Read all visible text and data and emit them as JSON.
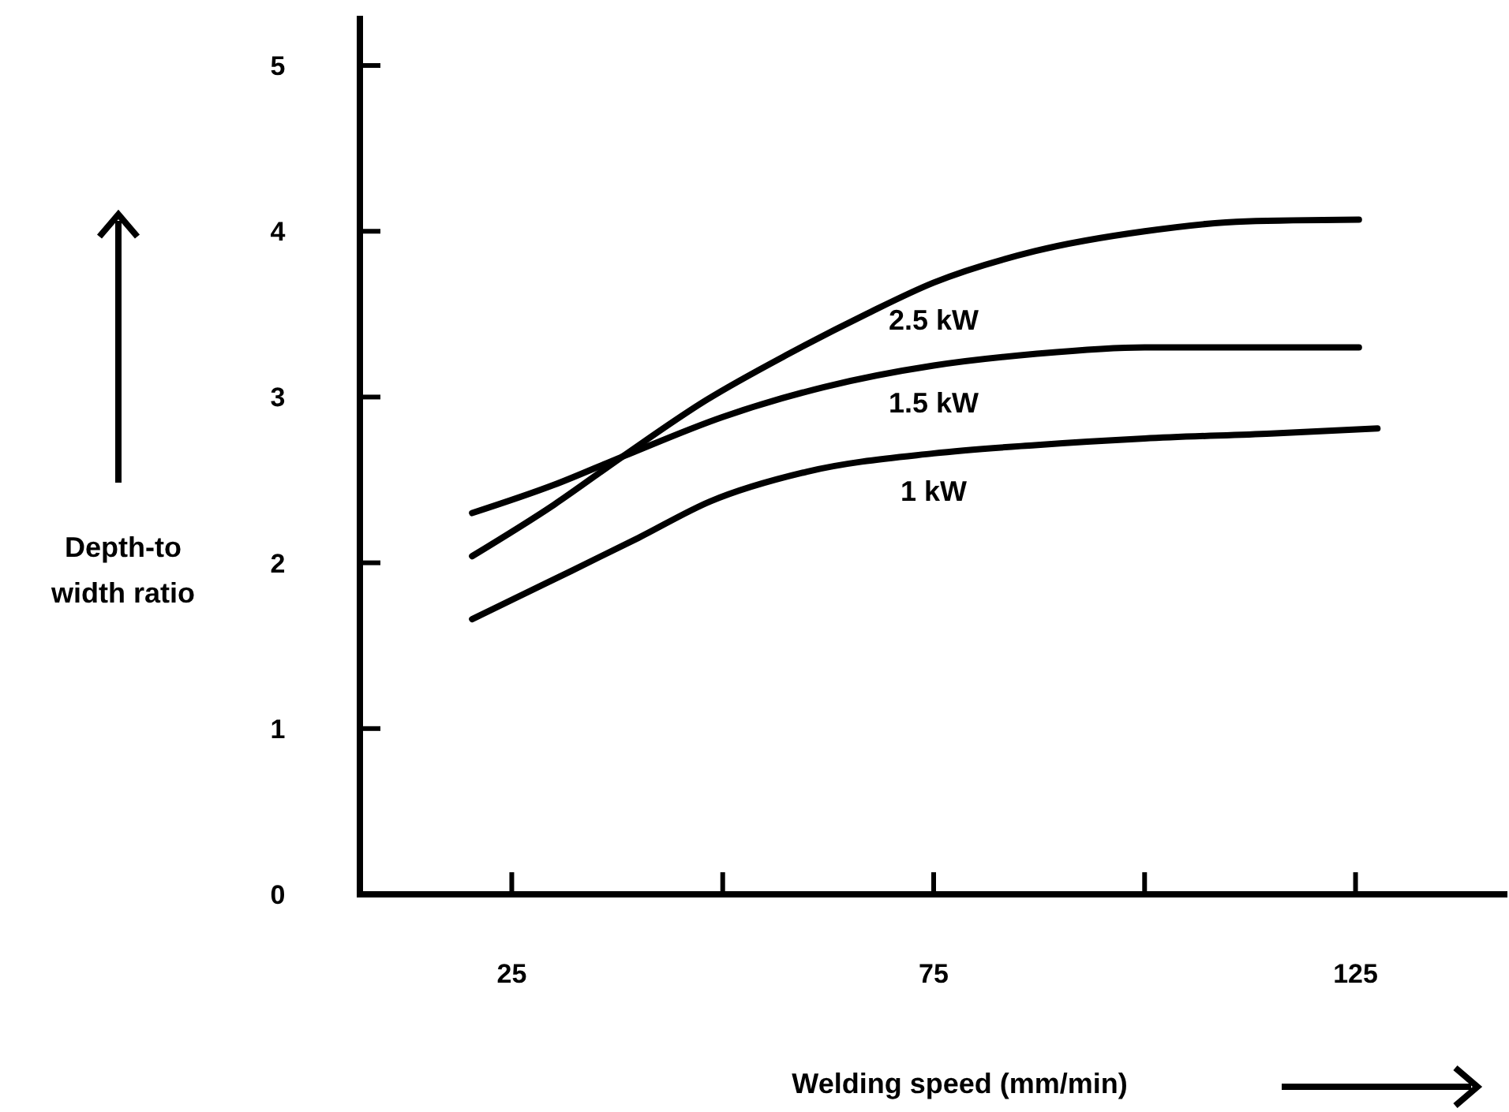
{
  "chart_data": {
    "type": "line",
    "xlabel": "Welding speed (mm/min)",
    "ylabel": "Depth-to width ratio",
    "xlim": [
      7,
      143
    ],
    "ylim": [
      0,
      5.3
    ],
    "xticks": [
      25,
      {
        "value": 50,
        "label": null
      },
      75,
      {
        "value": 100,
        "label": null
      },
      125
    ],
    "yticks": [
      0,
      1,
      2,
      3,
      4,
      5
    ],
    "grid": false,
    "line_style": "solid",
    "series": [
      {
        "name": "1 kW",
        "color": "#000000",
        "x": [
          20.3,
          30,
          40,
          48.5,
          60,
          75,
          87,
          100,
          115,
          127.6
        ],
        "values": [
          1.66,
          1.9,
          2.15,
          2.37,
          2.55,
          2.66,
          2.71,
          2.75,
          2.78,
          2.81
        ]
      },
      {
        "name": "1.5 kW",
        "color": "#000000",
        "x": [
          20.3,
          30,
          38.1,
          50,
          62,
          75,
          87,
          100,
          112,
          125.4
        ],
        "values": [
          2.3,
          2.47,
          2.64,
          2.88,
          3.06,
          3.19,
          3.26,
          3.3,
          3.3,
          3.3
        ]
      },
      {
        "name": "2.5 kW",
        "color": "#000000",
        "x": [
          20.3,
          30,
          38.1,
          48,
          57.8,
          67,
          75,
          87,
          100,
          112,
          125.4
        ],
        "values": [
          2.04,
          2.35,
          2.64,
          2.98,
          3.26,
          3.5,
          3.69,
          3.88,
          4.0,
          4.06,
          4.07
        ]
      }
    ]
  }
}
